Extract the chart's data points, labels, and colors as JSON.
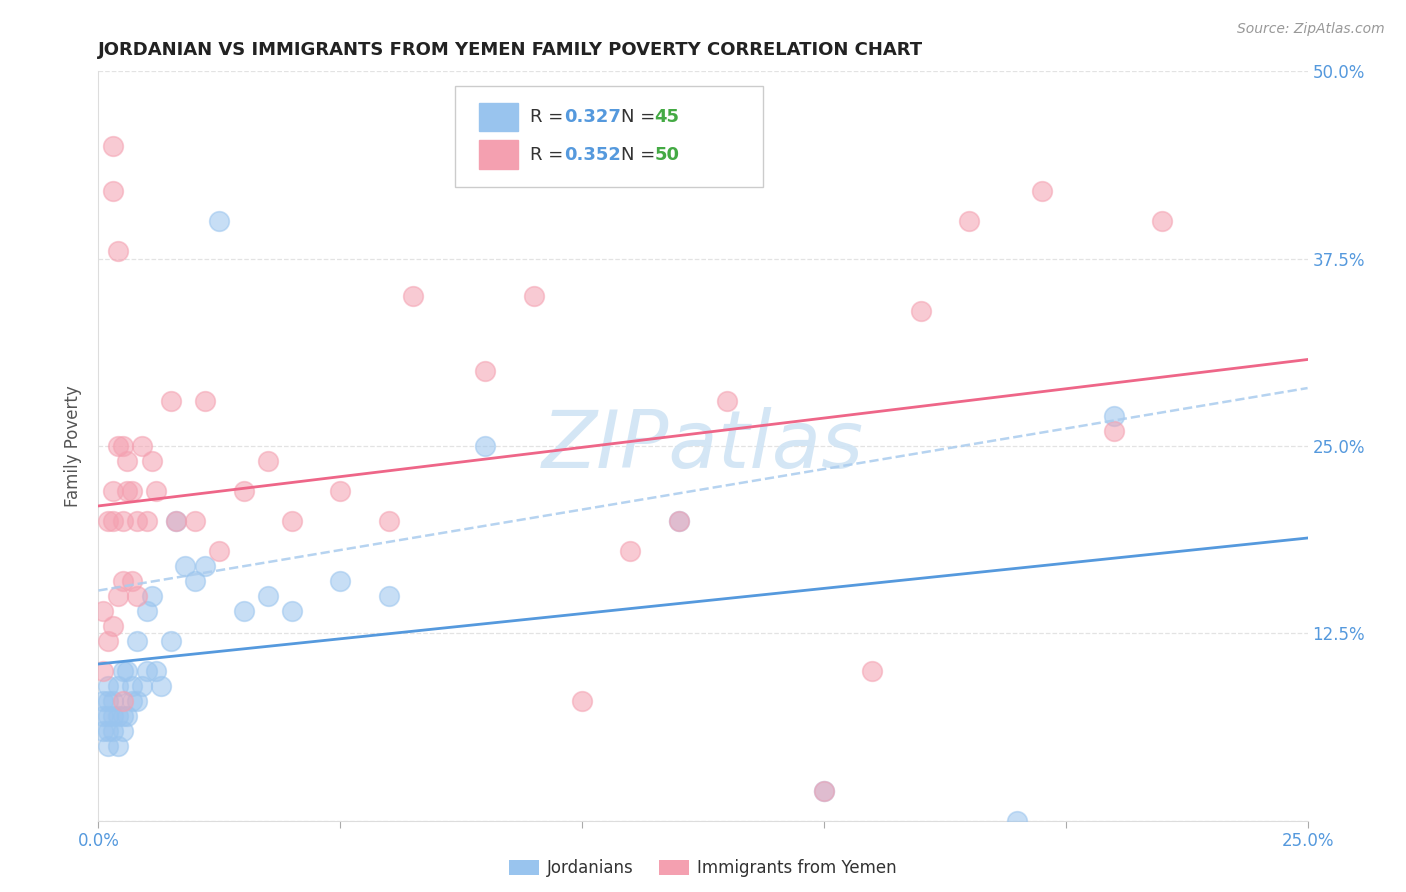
{
  "title": "JORDANIAN VS IMMIGRANTS FROM YEMEN FAMILY POVERTY CORRELATION CHART",
  "source": "Source: ZipAtlas.com",
  "ylabel": "Family Poverty",
  "xlim": [
    0.0,
    0.25
  ],
  "ylim": [
    0.0,
    0.5
  ],
  "color_jordanian": "#99C4EE",
  "color_yemen": "#F4A0B0",
  "color_trendline_jordanian": "#5599DD",
  "color_trendline_yemen": "#EE6688",
  "color_dashed": "#AACCEE",
  "color_tick_labels": "#5599DD",
  "watermark_color": "#D0E4F4",
  "legend_R1": "R = 0.327",
  "legend_N1": "N = 45",
  "legend_R2": "R = 0.352",
  "legend_N2": "N = 50",
  "legend_color_R": "#5599DD",
  "legend_color_N": "#44AA44",
  "jordanian_x": [
    0.001,
    0.001,
    0.001,
    0.002,
    0.002,
    0.002,
    0.002,
    0.002,
    0.003,
    0.003,
    0.003,
    0.004,
    0.004,
    0.004,
    0.005,
    0.005,
    0.005,
    0.006,
    0.006,
    0.007,
    0.007,
    0.008,
    0.008,
    0.009,
    0.01,
    0.01,
    0.011,
    0.012,
    0.013,
    0.015,
    0.016,
    0.018,
    0.02,
    0.022,
    0.025,
    0.03,
    0.035,
    0.04,
    0.05,
    0.06,
    0.08,
    0.12,
    0.15,
    0.19,
    0.21
  ],
  "jordanian_y": [
    0.06,
    0.07,
    0.08,
    0.05,
    0.06,
    0.07,
    0.08,
    0.09,
    0.06,
    0.07,
    0.08,
    0.05,
    0.07,
    0.09,
    0.06,
    0.07,
    0.1,
    0.07,
    0.1,
    0.08,
    0.09,
    0.08,
    0.12,
    0.09,
    0.1,
    0.14,
    0.15,
    0.1,
    0.09,
    0.12,
    0.2,
    0.17,
    0.16,
    0.17,
    0.4,
    0.14,
    0.15,
    0.14,
    0.16,
    0.15,
    0.25,
    0.2,
    0.02,
    0.0,
    0.27
  ],
  "yemen_x": [
    0.001,
    0.001,
    0.002,
    0.002,
    0.003,
    0.003,
    0.003,
    0.004,
    0.004,
    0.005,
    0.005,
    0.005,
    0.006,
    0.006,
    0.007,
    0.007,
    0.008,
    0.008,
    0.009,
    0.01,
    0.011,
    0.012,
    0.015,
    0.016,
    0.02,
    0.022,
    0.025,
    0.03,
    0.035,
    0.04,
    0.05,
    0.06,
    0.065,
    0.08,
    0.09,
    0.1,
    0.11,
    0.12,
    0.13,
    0.15,
    0.16,
    0.17,
    0.18,
    0.195,
    0.21,
    0.22,
    0.003,
    0.003,
    0.004,
    0.005
  ],
  "yemen_y": [
    0.1,
    0.14,
    0.12,
    0.2,
    0.13,
    0.2,
    0.22,
    0.15,
    0.25,
    0.16,
    0.2,
    0.25,
    0.22,
    0.24,
    0.16,
    0.22,
    0.15,
    0.2,
    0.25,
    0.2,
    0.24,
    0.22,
    0.28,
    0.2,
    0.2,
    0.28,
    0.18,
    0.22,
    0.24,
    0.2,
    0.22,
    0.2,
    0.35,
    0.3,
    0.35,
    0.08,
    0.18,
    0.2,
    0.28,
    0.02,
    0.1,
    0.34,
    0.4,
    0.42,
    0.26,
    0.4,
    0.42,
    0.45,
    0.38,
    0.08
  ]
}
